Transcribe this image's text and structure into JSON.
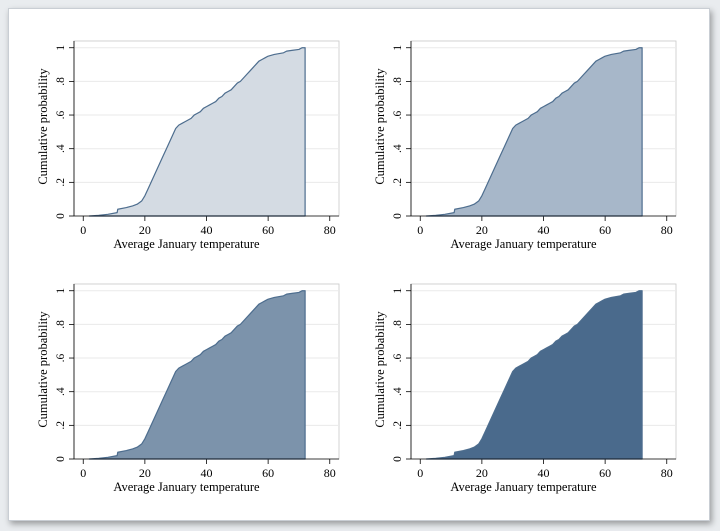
{
  "panel_fill_colors": [
    "#d4dbe3",
    "#a7b7c9",
    "#7c93ab",
    "#4a6a8c"
  ],
  "curve_stroke_color": "#4d6d8e",
  "chart_data": [
    {
      "type": "area",
      "xlabel": "Average January temperature",
      "ylabel": "Cumulative probability",
      "xlim": [
        -3,
        83
      ],
      "ylim": [
        0,
        1.04
      ],
      "xticks": [
        0,
        20,
        40,
        60,
        80
      ],
      "xtick_labels": [
        "0",
        "20",
        "40",
        "60",
        "80"
      ],
      "yticks": [
        0,
        0.2,
        0.4,
        0.6,
        0.8,
        1
      ],
      "ytick_labels": [
        "0",
        ".2",
        ".4",
        ".6",
        ".8",
        "1"
      ],
      "grid": true,
      "x": [
        2,
        5,
        8,
        11,
        11.2,
        14,
        16,
        17.5,
        19,
        20,
        21,
        22,
        23,
        24,
        25,
        26,
        27,
        28,
        29,
        30,
        31,
        32,
        33,
        35,
        36,
        37,
        38,
        39,
        40,
        41,
        42,
        43,
        44,
        45,
        46,
        47,
        48,
        49,
        50,
        51,
        52,
        53,
        54,
        55,
        56,
        57,
        58,
        59,
        60,
        62,
        65,
        66,
        68,
        70,
        71,
        72
      ],
      "y": [
        0,
        0.004,
        0.01,
        0.02,
        0.04,
        0.05,
        0.06,
        0.07,
        0.09,
        0.12,
        0.16,
        0.2,
        0.24,
        0.28,
        0.32,
        0.36,
        0.4,
        0.44,
        0.48,
        0.52,
        0.54,
        0.55,
        0.56,
        0.58,
        0.6,
        0.61,
        0.62,
        0.64,
        0.65,
        0.66,
        0.67,
        0.68,
        0.7,
        0.71,
        0.73,
        0.74,
        0.75,
        0.77,
        0.79,
        0.8,
        0.82,
        0.84,
        0.86,
        0.88,
        0.9,
        0.92,
        0.93,
        0.94,
        0.95,
        0.96,
        0.97,
        0.98,
        0.985,
        0.99,
        1,
        1
      ]
    },
    {
      "type": "area",
      "xlabel": "Average January temperature",
      "ylabel": "Cumulative probability",
      "xlim": [
        -3,
        83
      ],
      "ylim": [
        0,
        1.04
      ],
      "xticks": [
        0,
        20,
        40,
        60,
        80
      ],
      "xtick_labels": [
        "0",
        "20",
        "40",
        "60",
        "80"
      ],
      "yticks": [
        0,
        0.2,
        0.4,
        0.6,
        0.8,
        1
      ],
      "ytick_labels": [
        "0",
        ".2",
        ".4",
        ".6",
        ".8",
        "1"
      ],
      "grid": true,
      "x": [
        2,
        5,
        8,
        11,
        11.2,
        14,
        16,
        17.5,
        19,
        20,
        21,
        22,
        23,
        24,
        25,
        26,
        27,
        28,
        29,
        30,
        31,
        32,
        33,
        35,
        36,
        37,
        38,
        39,
        40,
        41,
        42,
        43,
        44,
        45,
        46,
        47,
        48,
        49,
        50,
        51,
        52,
        53,
        54,
        55,
        56,
        57,
        58,
        59,
        60,
        62,
        65,
        66,
        68,
        70,
        71,
        72
      ],
      "y": [
        0,
        0.004,
        0.01,
        0.02,
        0.04,
        0.05,
        0.06,
        0.07,
        0.09,
        0.12,
        0.16,
        0.2,
        0.24,
        0.28,
        0.32,
        0.36,
        0.4,
        0.44,
        0.48,
        0.52,
        0.54,
        0.55,
        0.56,
        0.58,
        0.6,
        0.61,
        0.62,
        0.64,
        0.65,
        0.66,
        0.67,
        0.68,
        0.7,
        0.71,
        0.73,
        0.74,
        0.75,
        0.77,
        0.79,
        0.8,
        0.82,
        0.84,
        0.86,
        0.88,
        0.9,
        0.92,
        0.93,
        0.94,
        0.95,
        0.96,
        0.97,
        0.98,
        0.985,
        0.99,
        1,
        1
      ]
    },
    {
      "type": "area",
      "xlabel": "Average January temperature",
      "ylabel": "Cumulative probability",
      "xlim": [
        -3,
        83
      ],
      "ylim": [
        0,
        1.04
      ],
      "xticks": [
        0,
        20,
        40,
        60,
        80
      ],
      "xtick_labels": [
        "0",
        "20",
        "40",
        "60",
        "80"
      ],
      "yticks": [
        0,
        0.2,
        0.4,
        0.6,
        0.8,
        1
      ],
      "ytick_labels": [
        "0",
        ".2",
        ".4",
        ".6",
        ".8",
        "1"
      ],
      "grid": true,
      "x": [
        2,
        5,
        8,
        11,
        11.2,
        14,
        16,
        17.5,
        19,
        20,
        21,
        22,
        23,
        24,
        25,
        26,
        27,
        28,
        29,
        30,
        31,
        32,
        33,
        35,
        36,
        37,
        38,
        39,
        40,
        41,
        42,
        43,
        44,
        45,
        46,
        47,
        48,
        49,
        50,
        51,
        52,
        53,
        54,
        55,
        56,
        57,
        58,
        59,
        60,
        62,
        65,
        66,
        68,
        70,
        71,
        72
      ],
      "y": [
        0,
        0.004,
        0.01,
        0.02,
        0.04,
        0.05,
        0.06,
        0.07,
        0.09,
        0.12,
        0.16,
        0.2,
        0.24,
        0.28,
        0.32,
        0.36,
        0.4,
        0.44,
        0.48,
        0.52,
        0.54,
        0.55,
        0.56,
        0.58,
        0.6,
        0.61,
        0.62,
        0.64,
        0.65,
        0.66,
        0.67,
        0.68,
        0.7,
        0.71,
        0.73,
        0.74,
        0.75,
        0.77,
        0.79,
        0.8,
        0.82,
        0.84,
        0.86,
        0.88,
        0.9,
        0.92,
        0.93,
        0.94,
        0.95,
        0.96,
        0.97,
        0.98,
        0.985,
        0.99,
        1,
        1
      ]
    },
    {
      "type": "area",
      "xlabel": "Average January temperature",
      "ylabel": "Cumulative probability",
      "xlim": [
        -3,
        83
      ],
      "ylim": [
        0,
        1.04
      ],
      "xticks": [
        0,
        20,
        40,
        60,
        80
      ],
      "xtick_labels": [
        "0",
        "20",
        "40",
        "60",
        "80"
      ],
      "yticks": [
        0,
        0.2,
        0.4,
        0.6,
        0.8,
        1
      ],
      "ytick_labels": [
        "0",
        ".2",
        ".4",
        ".6",
        ".8",
        "1"
      ],
      "grid": true,
      "x": [
        2,
        5,
        8,
        11,
        11.2,
        14,
        16,
        17.5,
        19,
        20,
        21,
        22,
        23,
        24,
        25,
        26,
        27,
        28,
        29,
        30,
        31,
        32,
        33,
        35,
        36,
        37,
        38,
        39,
        40,
        41,
        42,
        43,
        44,
        45,
        46,
        47,
        48,
        49,
        50,
        51,
        52,
        53,
        54,
        55,
        56,
        57,
        58,
        59,
        60,
        62,
        65,
        66,
        68,
        70,
        71,
        72
      ],
      "y": [
        0,
        0.004,
        0.01,
        0.02,
        0.04,
        0.05,
        0.06,
        0.07,
        0.09,
        0.12,
        0.16,
        0.2,
        0.24,
        0.28,
        0.32,
        0.36,
        0.4,
        0.44,
        0.48,
        0.52,
        0.54,
        0.55,
        0.56,
        0.58,
        0.6,
        0.61,
        0.62,
        0.64,
        0.65,
        0.66,
        0.67,
        0.68,
        0.7,
        0.71,
        0.73,
        0.74,
        0.75,
        0.77,
        0.79,
        0.8,
        0.82,
        0.84,
        0.86,
        0.88,
        0.9,
        0.92,
        0.93,
        0.94,
        0.95,
        0.96,
        0.97,
        0.98,
        0.985,
        0.99,
        1,
        1
      ]
    }
  ]
}
